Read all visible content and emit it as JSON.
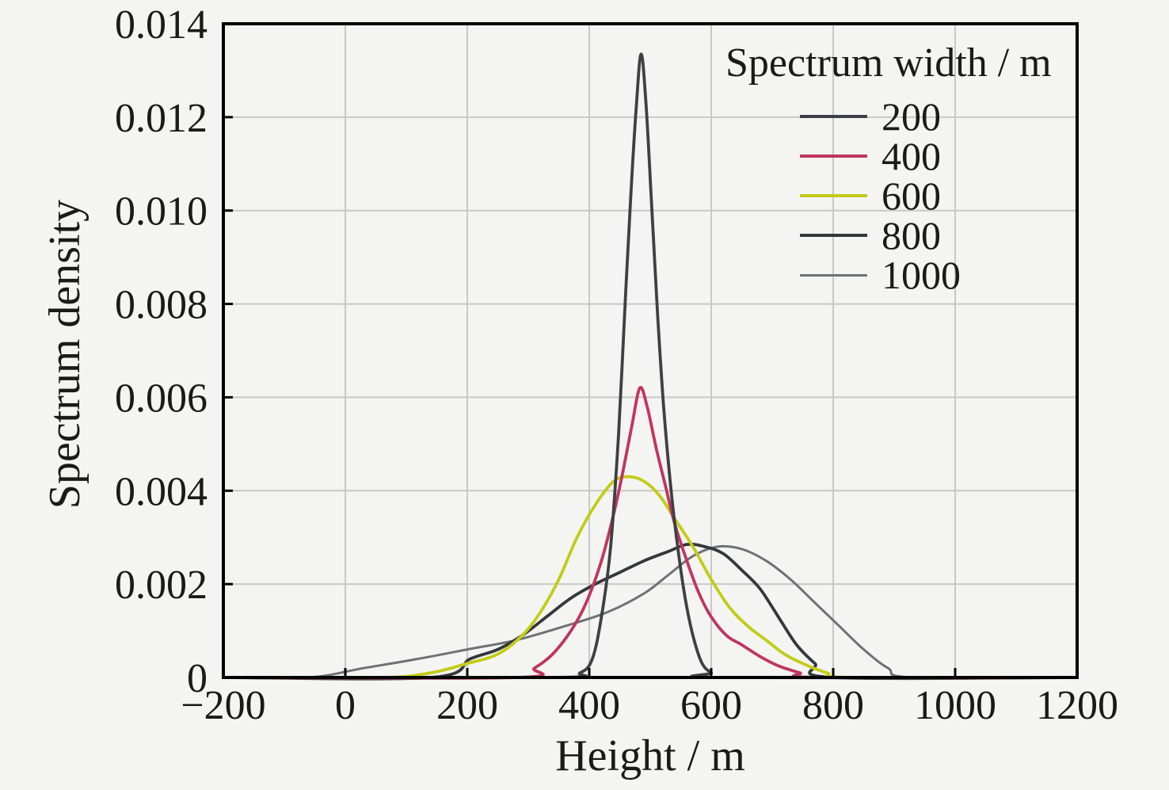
{
  "figure": {
    "background": "#f4f4f2",
    "axis_color": "#000000",
    "grid_color": "#c8c8c8",
    "text_color": "#1a1a1a"
  },
  "chart_data": {
    "type": "line",
    "title": "",
    "xlabel": "Height / m",
    "ylabel": "Spectrum density",
    "xlim": [
      -200,
      1200
    ],
    "ylim": [
      0,
      0.014
    ],
    "grid": true,
    "legend_title": "Spectrum width / m",
    "legend_position": "top-right",
    "x_ticks": [
      -200,
      0,
      200,
      400,
      600,
      800,
      1000,
      1200
    ],
    "x_tick_labels": [
      "−200",
      "0",
      "200",
      "400",
      "600",
      "800",
      "1000",
      "1200"
    ],
    "y_ticks": [
      0,
      0.002,
      0.004,
      0.006,
      0.008,
      0.01,
      0.012,
      0.014
    ],
    "y_tick_labels": [
      "0",
      "0.002",
      "0.004",
      "0.006",
      "0.008",
      "0.010",
      "0.012",
      "0.014"
    ],
    "series": [
      {
        "name": "200",
        "color": "#3e4046",
        "peak": {
          "x": 485,
          "y": 0.01335
        },
        "x": [
          -200,
          340,
          385,
          405,
          420,
          435,
          448,
          458,
          468,
          477,
          485,
          493,
          502,
          512,
          522,
          535,
          548,
          560,
          572,
          585,
          600,
          615,
          1200
        ],
        "y": [
          0,
          0,
          0.0001,
          0.0004,
          0.0013,
          0.0028,
          0.0052,
          0.0078,
          0.0103,
          0.0122,
          0.01335,
          0.0123,
          0.0102,
          0.0078,
          0.0058,
          0.0039,
          0.0025,
          0.0015,
          0.0008,
          0.0003,
          0.0001,
          0,
          0
        ]
      },
      {
        "name": "400",
        "color": "#c0365e",
        "peak": {
          "x": 483,
          "y": 0.0062
        },
        "x": [
          -200,
          280,
          310,
          340,
          370,
          395,
          420,
          440,
          455,
          470,
          483,
          495,
          510,
          525,
          540,
          560,
          580,
          600,
          625,
          650,
          680,
          710,
          745,
          775,
          1200
        ],
        "y": [
          0,
          0,
          0.0002,
          0.0005,
          0.001,
          0.0016,
          0.0025,
          0.0035,
          0.0044,
          0.0054,
          0.0062,
          0.0058,
          0.0049,
          0.0041,
          0.0033,
          0.0025,
          0.0018,
          0.0013,
          0.0009,
          0.0007,
          0.00045,
          0.00025,
          0.0001,
          0,
          0
        ]
      },
      {
        "name": "600",
        "color": "#c3cc17",
        "peak": {
          "x": 460,
          "y": 0.0043
        },
        "x": [
          -200,
          60,
          140,
          200,
          250,
          290,
          320,
          350,
          380,
          410,
          440,
          465,
          490,
          515,
          540,
          570,
          600,
          630,
          660,
          690,
          720,
          750,
          790,
          830,
          1200
        ],
        "y": [
          0,
          0,
          0.0001,
          0.0003,
          0.0005,
          0.0009,
          0.0014,
          0.0021,
          0.003,
          0.0037,
          0.0042,
          0.0043,
          0.0042,
          0.0039,
          0.0034,
          0.0028,
          0.0021,
          0.0015,
          0.0011,
          0.0008,
          0.0005,
          0.0003,
          0.0001,
          0,
          0
        ]
      },
      {
        "name": "800",
        "color": "#35373d",
        "peak": {
          "x": 560,
          "y": 0.00285
        },
        "x": [
          -200,
          140,
          205,
          250,
          290,
          330,
          370,
          410,
          450,
          490,
          530,
          560,
          590,
          620,
          650,
          680,
          710,
          740,
          770,
          800,
          1200
        ],
        "y": [
          0,
          0,
          0.0004,
          0.0006,
          0.0009,
          0.0013,
          0.0017,
          0.002,
          0.00225,
          0.0025,
          0.0027,
          0.00285,
          0.0028,
          0.00265,
          0.0023,
          0.0019,
          0.0013,
          0.0007,
          0.0003,
          0,
          0
        ]
      },
      {
        "name": "1000",
        "color": "#6f7175",
        "peak": {
          "x": 610,
          "y": 0.0028
        },
        "x": [
          -200,
          -60,
          30,
          120,
          200,
          280,
          360,
          430,
          490,
          530,
          570,
          610,
          650,
          690,
          730,
          770,
          810,
          850,
          890,
          930,
          1200
        ],
        "y": [
          0,
          0,
          0.0002,
          0.0004,
          0.0006,
          0.0008,
          0.0011,
          0.0014,
          0.0018,
          0.0022,
          0.0026,
          0.0028,
          0.00275,
          0.0025,
          0.0021,
          0.0016,
          0.0011,
          0.0006,
          0.0002,
          0,
          0
        ]
      }
    ]
  }
}
